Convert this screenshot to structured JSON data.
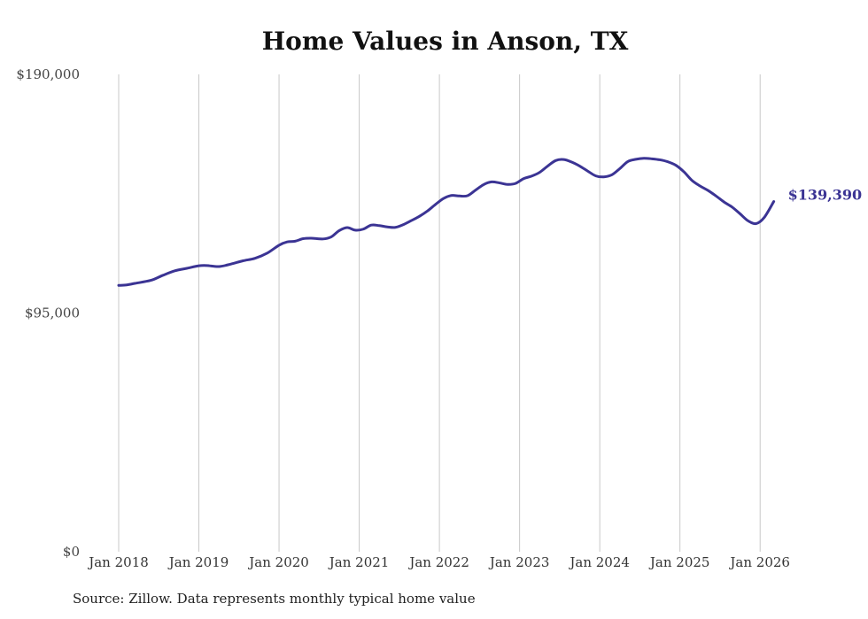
{
  "chart_data": {
    "type": "line",
    "title": "Home Values in Anson, TX",
    "xlabel": "",
    "ylabel": "",
    "ylim": [
      0,
      190000
    ],
    "y_ticks": [
      {
        "value": 0,
        "label": "$0"
      },
      {
        "value": 95000,
        "label": "$95,000"
      },
      {
        "value": 190000,
        "label": "$190,000"
      }
    ],
    "x_ticks": [
      {
        "value": 2018,
        "label": "Jan 2018"
      },
      {
        "value": 2019,
        "label": "Jan 2019"
      },
      {
        "value": 2020,
        "label": "Jan 2020"
      },
      {
        "value": 2021,
        "label": "Jan 2021"
      },
      {
        "value": 2022,
        "label": "Jan 2022"
      },
      {
        "value": 2023,
        "label": "Jan 2023"
      },
      {
        "value": 2024,
        "label": "Jan 2024"
      },
      {
        "value": 2025,
        "label": "Jan 2025"
      },
      {
        "value": 2026,
        "label": "Jan 2026"
      }
    ],
    "xlim": [
      2018,
      2026.17
    ],
    "grid": "vertical",
    "series": [
      {
        "name": "Typical home value",
        "color": "#3b3494",
        "x": [
          2018.0,
          2018.1,
          2018.2,
          2018.4,
          2018.55,
          2018.7,
          2018.85,
          2019.0,
          2019.1,
          2019.25,
          2019.4,
          2019.55,
          2019.7,
          2019.85,
          2020.0,
          2020.1,
          2020.2,
          2020.3,
          2020.4,
          2020.55,
          2020.65,
          2020.75,
          2020.85,
          2020.95,
          2021.05,
          2021.15,
          2021.25,
          2021.35,
          2021.45,
          2021.55,
          2021.65,
          2021.75,
          2021.85,
          2021.95,
          2022.05,
          2022.15,
          2022.25,
          2022.35,
          2022.45,
          2022.55,
          2022.65,
          2022.75,
          2022.85,
          2022.95,
          2023.05,
          2023.15,
          2023.25,
          2023.35,
          2023.45,
          2023.55,
          2023.65,
          2023.75,
          2023.85,
          2023.95,
          2024.05,
          2024.15,
          2024.25,
          2024.35,
          2024.45,
          2024.55,
          2024.65,
          2024.75,
          2024.85,
          2024.95,
          2025.05,
          2025.15,
          2025.25,
          2025.35,
          2025.45,
          2025.55,
          2025.65,
          2025.75,
          2025.85,
          2025.95,
          2026.05,
          2026.17
        ],
        "values": [
          106000,
          106200,
          106800,
          108000,
          110000,
          111800,
          112800,
          113800,
          113900,
          113500,
          114500,
          115800,
          116800,
          118800,
          122000,
          123300,
          123600,
          124600,
          124800,
          124500,
          125300,
          127800,
          129000,
          128000,
          128400,
          130000,
          129800,
          129300,
          129100,
          130200,
          131800,
          133500,
          135600,
          138200,
          140600,
          141800,
          141600,
          141700,
          143900,
          146100,
          147200,
          146800,
          146200,
          146600,
          148500,
          149500,
          151000,
          153500,
          155700,
          156100,
          155100,
          153500,
          151500,
          149600,
          149200,
          150000,
          152500,
          155300,
          156200,
          156600,
          156400,
          156000,
          155200,
          153800,
          151200,
          147800,
          145600,
          143800,
          141600,
          139200,
          137200,
          134500,
          131700,
          130600,
          133000,
          139390
        ]
      }
    ],
    "end_label": "$139,390",
    "source": "Source: Zillow. Data represents monthly typical home value"
  }
}
